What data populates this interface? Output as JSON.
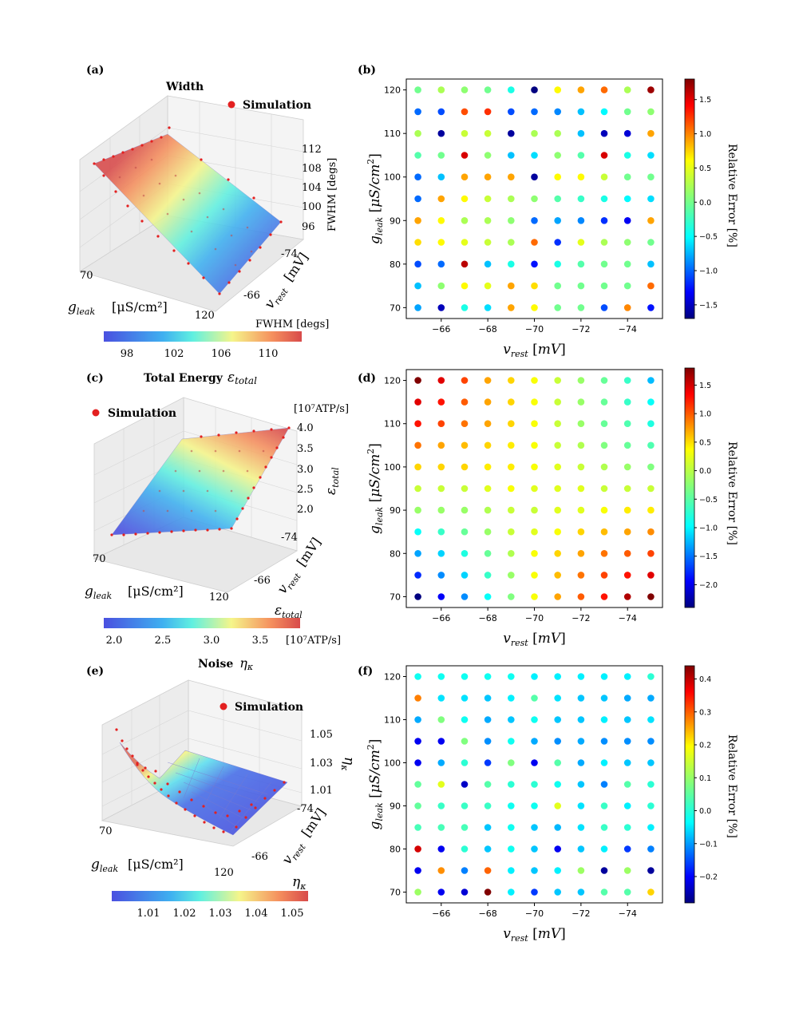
{
  "panels": {
    "a": {
      "label": "(a)",
      "title": "Width",
      "legend": "Simulation",
      "xlabel": "g",
      "xlabel_sub": "leak",
      "xlabel_unit": "[μS/cm²]",
      "ylabel": "v",
      "ylabel_sub": "rest",
      "ylabel_unit": "[mV]",
      "zlabel": "FWHM [degs]",
      "xticks": [
        "70",
        "120"
      ],
      "yticks": [
        "-74",
        "-66"
      ],
      "zticks": [
        "112",
        "108",
        "104",
        "100",
        "96"
      ],
      "cbar_title": "FWHM [degs]",
      "cbar_ticks": [
        "98",
        "102",
        "106",
        "110"
      ]
    },
    "c": {
      "label": "(c)",
      "title": "Total Energy",
      "title_sym": "ε",
      "title_sub": "total",
      "legend": "Simulation",
      "xlabel": "g",
      "xlabel_sub": "leak",
      "xlabel_unit": "[μS/cm²]",
      "ylabel": "v",
      "ylabel_sub": "rest",
      "ylabel_unit": "[mV]",
      "zlabel": "ε",
      "zlabel_sub": "total",
      "zunit_top": "[10⁷ATP/s]",
      "xticks": [
        "70",
        "120"
      ],
      "yticks": [
        "-74",
        "-66"
      ],
      "zticks": [
        "4.0",
        "3.5",
        "3.0",
        "2.5",
        "2.0"
      ],
      "cbar_title": "ε",
      "cbar_title_sub": "total",
      "cbar_unit": "[10⁷ATP/s]",
      "cbar_ticks": [
        "2.0",
        "2.5",
        "3.0",
        "3.5"
      ]
    },
    "e": {
      "label": "(e)",
      "title": "Noise",
      "title_sym": "η",
      "title_sub": "κ",
      "legend": "Simulation",
      "xlabel": "g",
      "xlabel_sub": "leak",
      "xlabel_unit": "[μS/cm²]",
      "ylabel": "v",
      "ylabel_sub": "rest",
      "ylabel_unit": "[mV]",
      "zlabel": "η",
      "zlabel_sub": "κ",
      "xticks": [
        "70",
        "120"
      ],
      "yticks": [
        "-74",
        "-66"
      ],
      "zticks": [
        "1.05",
        "1.03",
        "1.01"
      ],
      "cbar_title": "η",
      "cbar_title_sub": "κ",
      "cbar_ticks": [
        "1.01",
        "1.02",
        "1.03",
        "1.04",
        "1.05"
      ]
    },
    "b": {
      "label": "(b)",
      "cbar_label": "Relative Error [%]"
    },
    "d": {
      "label": "(d)",
      "cbar_label": "Relative Error [%]"
    },
    "f": {
      "label": "(f)",
      "cbar_label": "Relative Error [%]"
    }
  },
  "chart_data": [
    {
      "panel": "b",
      "type": "scatter",
      "title": "",
      "xlabel": "v_rest [mV]",
      "ylabel": "g_leak [μS/cm²]",
      "x_values": [
        -65,
        -66,
        -67,
        -68,
        -69,
        -70,
        -71,
        -72,
        -73,
        -74,
        -75
      ],
      "y_values": [
        120,
        115,
        110,
        105,
        100,
        95,
        90,
        85,
        80,
        75,
        70
      ],
      "xticks": [
        -66,
        -68,
        -70,
        -72,
        -74
      ],
      "yticks": [
        70,
        80,
        90,
        100,
        110,
        120
      ],
      "color_range": [
        -1.7,
        1.8
      ],
      "colorbar_ticks": [
        1.5,
        1.0,
        0.5,
        0.0,
        -0.5,
        -1.0,
        -1.5
      ],
      "relative_error": [
        [
          0.0,
          0.2,
          0.1,
          0.0,
          -0.3,
          -1.7,
          0.5,
          0.8,
          1.0,
          0.2,
          1.7
        ],
        [
          -0.9,
          -1.0,
          1.1,
          1.2,
          -1.0,
          -0.9,
          -0.8,
          -0.6,
          -0.4,
          0.0,
          0.1
        ],
        [
          0.2,
          -1.6,
          0.3,
          0.3,
          -1.6,
          0.2,
          0.2,
          -0.6,
          -1.5,
          -1.4,
          0.8
        ],
        [
          -0.1,
          0.0,
          1.5,
          0.1,
          -0.6,
          -0.5,
          0.1,
          -0.1,
          1.5,
          -0.3,
          -0.5
        ],
        [
          -0.9,
          -0.6,
          0.8,
          0.8,
          0.8,
          -1.6,
          0.5,
          0.5,
          0.3,
          0.0,
          0.0
        ],
        [
          -0.9,
          0.8,
          0.5,
          0.3,
          0.2,
          0.1,
          -0.1,
          -0.2,
          -0.3,
          -0.4,
          -0.5
        ],
        [
          0.8,
          0.5,
          0.2,
          0.2,
          0.1,
          -0.9,
          -0.7,
          -0.8,
          -1.1,
          -1.3,
          0.8
        ],
        [
          0.6,
          0.5,
          0.4,
          0.3,
          0.2,
          1.0,
          -1.1,
          0.4,
          0.2,
          0.1,
          0.0
        ],
        [
          -1.0,
          -0.9,
          1.6,
          -0.6,
          -0.3,
          -1.2,
          -0.3,
          -0.1,
          0.0,
          0.0,
          -0.6
        ],
        [
          -0.6,
          0.1,
          0.5,
          0.4,
          0.8,
          0.6,
          0.0,
          0.0,
          0.0,
          0.0,
          1.0
        ],
        [
          -0.7,
          -1.5,
          -0.3,
          -0.5,
          0.8,
          0.5,
          0.0,
          0.0,
          -1.0,
          0.9,
          -1.2
        ]
      ]
    },
    {
      "panel": "d",
      "type": "scatter",
      "title": "",
      "xlabel": "v_rest [mV]",
      "ylabel": "g_leak [μS/cm²]",
      "x_values": [
        -65,
        -66,
        -67,
        -68,
        -69,
        -70,
        -71,
        -72,
        -73,
        -74,
        -75
      ],
      "y_values": [
        120,
        115,
        110,
        105,
        100,
        95,
        90,
        85,
        80,
        75,
        70
      ],
      "xticks": [
        -66,
        -68,
        -70,
        -72,
        -74
      ],
      "yticks": [
        70,
        80,
        90,
        100,
        110,
        120
      ],
      "color_range": [
        -2.4,
        1.8
      ],
      "colorbar_ticks": [
        1.5,
        1.0,
        0.5,
        0.0,
        -0.5,
        -1.0,
        -1.5,
        -2.0
      ],
      "relative_error": [
        [
          1.8,
          1.4,
          1.0,
          0.6,
          0.4,
          0.2,
          0.0,
          -0.2,
          -0.4,
          -0.6,
          -1.1
        ],
        [
          1.4,
          1.2,
          0.9,
          0.6,
          0.4,
          0.2,
          0.0,
          -0.2,
          -0.4,
          -0.6,
          -0.8
        ],
        [
          1.2,
          1.0,
          0.8,
          0.6,
          0.4,
          0.2,
          0.0,
          -0.2,
          -0.4,
          -0.5,
          -0.7
        ],
        [
          0.8,
          0.6,
          0.5,
          0.4,
          0.3,
          0.2,
          0.0,
          -0.1,
          -0.3,
          -0.4,
          -0.5
        ],
        [
          0.4,
          0.4,
          0.4,
          0.3,
          0.3,
          0.2,
          0.1,
          0.0,
          -0.1,
          -0.2,
          -0.3
        ],
        [
          0.0,
          0.0,
          0.0,
          0.1,
          0.2,
          0.1,
          0.1,
          0.1,
          0.0,
          0.0,
          0.0
        ],
        [
          -0.2,
          -0.2,
          -0.2,
          -0.1,
          0.0,
          0.0,
          0.1,
          0.1,
          0.2,
          0.3,
          0.3
        ],
        [
          -0.8,
          -0.6,
          -0.4,
          -0.2,
          0.0,
          0.1,
          0.2,
          0.4,
          0.5,
          0.6,
          0.7
        ],
        [
          -1.2,
          -1.0,
          -0.7,
          -0.4,
          -0.1,
          0.2,
          0.4,
          0.6,
          0.8,
          0.9,
          1.0
        ],
        [
          -1.7,
          -1.3,
          -1.0,
          -0.6,
          -0.2,
          0.2,
          0.5,
          0.8,
          1.0,
          1.2,
          1.4
        ],
        [
          -2.4,
          -1.9,
          -1.3,
          -0.8,
          -0.3,
          0.2,
          0.6,
          0.9,
          1.2,
          1.6,
          1.8
        ]
      ]
    },
    {
      "panel": "f",
      "type": "scatter",
      "title": "",
      "xlabel": "v_rest [mV]",
      "ylabel": "g_leak [μS/cm²]",
      "x_values": [
        -65,
        -66,
        -67,
        -68,
        -69,
        -70,
        -71,
        -72,
        -73,
        -74,
        -75
      ],
      "y_values": [
        120,
        115,
        110,
        105,
        100,
        95,
        90,
        85,
        80,
        75,
        70
      ],
      "xticks": [
        -66,
        -68,
        -70,
        -72,
        -74
      ],
      "yticks": [
        70,
        80,
        90,
        100,
        110,
        120
      ],
      "color_range": [
        -0.28,
        0.44
      ],
      "colorbar_ticks": [
        0.4,
        0.3,
        0.2,
        0.1,
        0.0,
        -0.1,
        -0.2
      ],
      "relative_error": [
        [
          0.0,
          0.0,
          0.0,
          0.0,
          0.0,
          -0.02,
          -0.02,
          -0.02,
          -0.02,
          -0.02,
          0.02
        ],
        [
          0.26,
          -0.03,
          -0.03,
          -0.05,
          -0.02,
          0.05,
          -0.03,
          -0.05,
          -0.05,
          -0.07,
          -0.07
        ],
        [
          -0.07,
          0.08,
          0.0,
          -0.07,
          -0.05,
          0.0,
          -0.05,
          -0.05,
          -0.02,
          -0.05,
          -0.03
        ],
        [
          -0.2,
          -0.2,
          0.08,
          -0.09,
          0.0,
          -0.07,
          -0.09,
          -0.07,
          -0.09,
          -0.09,
          -0.09
        ],
        [
          -0.2,
          -0.07,
          0.02,
          -0.15,
          0.08,
          -0.2,
          0.05,
          -0.07,
          -0.02,
          -0.05,
          -0.05
        ],
        [
          0.06,
          0.15,
          -0.23,
          0.05,
          0.02,
          0.02,
          0.0,
          -0.05,
          -0.1,
          0.05,
          0.02
        ],
        [
          0.06,
          0.03,
          0.03,
          0.03,
          0.0,
          0.0,
          0.15,
          -0.03,
          0.03,
          -0.02,
          0.02
        ],
        [
          0.04,
          0.04,
          0.04,
          -0.05,
          0.0,
          -0.05,
          -0.06,
          -0.03,
          0.03,
          0.02,
          -0.02
        ],
        [
          0.38,
          -0.2,
          0.02,
          -0.05,
          0.0,
          -0.05,
          -0.2,
          -0.05,
          -0.02,
          -0.15,
          -0.1
        ],
        [
          -0.2,
          0.25,
          -0.1,
          0.28,
          -0.02,
          -0.05,
          -0.02,
          0.1,
          -0.26,
          0.1,
          -0.26
        ],
        [
          0.1,
          -0.2,
          -0.22,
          0.44,
          -0.02,
          -0.15,
          -0.05,
          -0.05,
          0.05,
          0.05,
          0.2
        ]
      ]
    }
  ]
}
